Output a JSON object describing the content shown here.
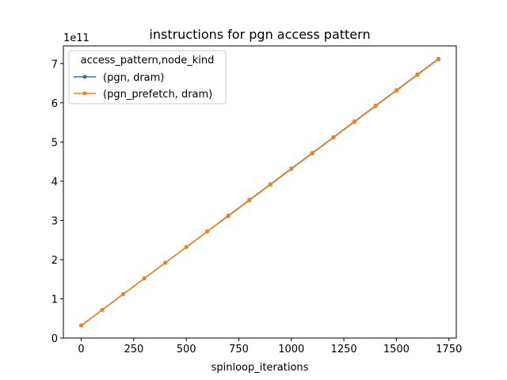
{
  "chart_data": {
    "type": "line",
    "title": "instructions for pgn access pattern",
    "xlabel": "spinloop_iterations",
    "ylabel": "",
    "offset_label": "1e11",
    "xlim": [
      -85,
      1785
    ],
    "ylim": [
      0,
      7.45
    ],
    "xticks": [
      0,
      250,
      500,
      750,
      1000,
      1250,
      1500,
      1750
    ],
    "yticks": [
      0,
      1,
      2,
      3,
      4,
      5,
      6,
      7
    ],
    "grid": false,
    "legend": {
      "title": "access_pattern,node_kind",
      "placement": "upper left"
    },
    "x": [
      0,
      100,
      200,
      300,
      400,
      500,
      600,
      700,
      800,
      900,
      1000,
      1100,
      1200,
      1300,
      1400,
      1500,
      1600,
      1700
    ],
    "series": [
      {
        "name": "(pgn, dram)",
        "color": "#1f77b4",
        "values": [
          0.32,
          0.72,
          1.12,
          1.52,
          1.92,
          2.32,
          2.72,
          3.12,
          3.52,
          3.92,
          4.32,
          4.72,
          5.12,
          5.52,
          5.92,
          6.32,
          6.72,
          7.12
        ]
      },
      {
        "name": "(pgn_prefetch, dram)",
        "color": "#ff7f0e",
        "values": [
          0.32,
          0.72,
          1.12,
          1.52,
          1.92,
          2.32,
          2.72,
          3.11,
          3.51,
          3.91,
          4.31,
          4.71,
          5.11,
          5.51,
          5.91,
          6.31,
          6.71,
          7.11
        ]
      }
    ]
  }
}
